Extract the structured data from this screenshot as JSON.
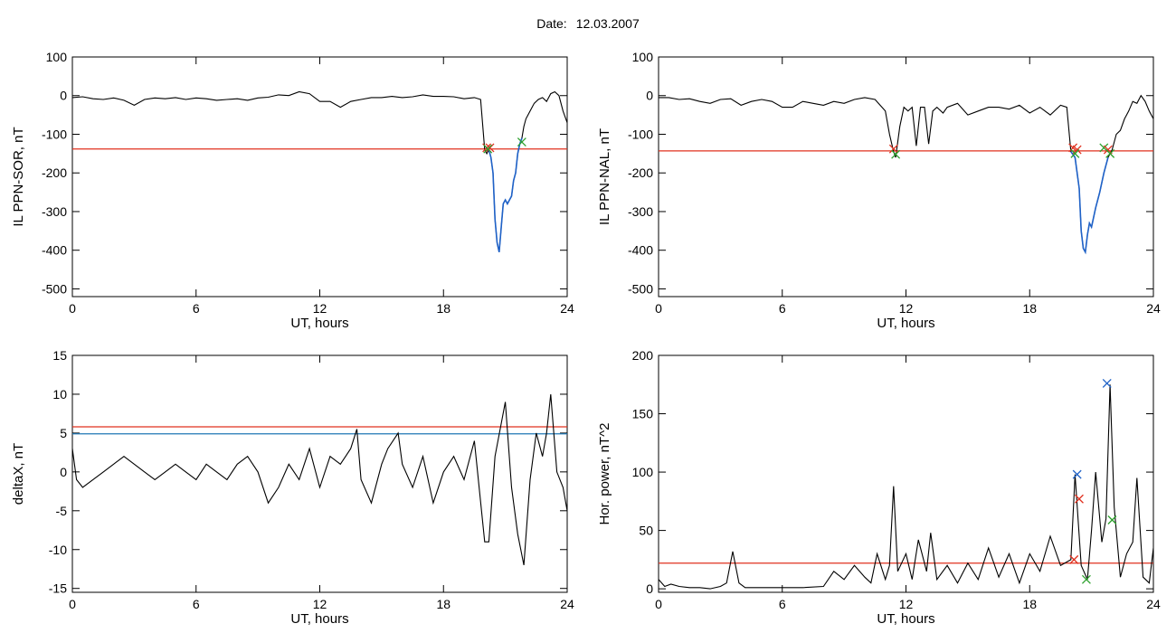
{
  "header": {
    "date_label": "Date:",
    "date_value": "12.03.2007"
  },
  "colors": {
    "trace": "#000000",
    "threshold_red": "#e0301e",
    "threshold_blue": "#1f77b4",
    "segment_blue": "#1f62c8",
    "marker_red": "#e0301e",
    "marker_green": "#2ca02c",
    "marker_blue": "#1f62c8"
  },
  "chart_data": [
    {
      "type": "line",
      "xlabel": "UT, hours",
      "ylabel": "IL PPN-SOR, nT",
      "xlim": [
        0,
        24
      ],
      "ylim": [
        -520,
        100
      ],
      "xticks": [
        0,
        6,
        12,
        18,
        24
      ],
      "yticks": [
        100,
        0,
        -100,
        -200,
        -300,
        -400,
        -500
      ],
      "grid": false,
      "series": [
        {
          "x": [
            0,
            0.5,
            1,
            1.5,
            2,
            2.5,
            3,
            3.5,
            4,
            4.5,
            5,
            5.5,
            6,
            6.5,
            7,
            7.5,
            8,
            8.5,
            9,
            9.5,
            10,
            10.5,
            11,
            11.5,
            12,
            12.5,
            13,
            13.5,
            14,
            14.5,
            15,
            15.5,
            16,
            16.5,
            17,
            17.5,
            18,
            18.5,
            19,
            19.5,
            19.8,
            20,
            20.1,
            20.2,
            20.3,
            20.4,
            20.5,
            20.6,
            20.7,
            20.8,
            20.9,
            21,
            21.1,
            21.2,
            21.3,
            21.4,
            21.5,
            21.6,
            21.7,
            21.8,
            21.9,
            22,
            22.2,
            22.4,
            22.6,
            22.8,
            23,
            23.2,
            23.4,
            23.6,
            23.8,
            24
          ],
          "y": [
            -5,
            -3,
            -8,
            -10,
            -6,
            -12,
            -25,
            -10,
            -6,
            -8,
            -5,
            -10,
            -6,
            -8,
            -12,
            -10,
            -8,
            -12,
            -6,
            -4,
            2,
            0,
            10,
            5,
            -15,
            -15,
            -30,
            -15,
            -10,
            -5,
            -5,
            -2,
            -5,
            -3,
            2,
            -2,
            -2,
            -3,
            -8,
            -5,
            -10,
            -140,
            -150,
            -140,
            -160,
            -200,
            -320,
            -380,
            -405,
            -340,
            -280,
            -270,
            -280,
            -270,
            -260,
            -220,
            -200,
            -150,
            -125,
            -110,
            -80,
            -60,
            -40,
            -20,
            -10,
            -5,
            -15,
            5,
            10,
            0,
            -40,
            -70
          ]
        }
      ],
      "threshold_red": -138,
      "blue_segment_range": [
        20.2,
        21.8
      ],
      "markers": [
        {
          "x": 20.1,
          "y": -135,
          "color": "red"
        },
        {
          "x": 20.25,
          "y": -135,
          "color": "red"
        },
        {
          "x": 20.15,
          "y": -138,
          "color": "green"
        },
        {
          "x": 21.8,
          "y": -120,
          "color": "green"
        }
      ]
    },
    {
      "type": "line",
      "xlabel": "UT, hours",
      "ylabel": "IL PPN-NAL, nT",
      "xlim": [
        0,
        24
      ],
      "ylim": [
        -520,
        100
      ],
      "xticks": [
        0,
        6,
        12,
        18,
        24
      ],
      "yticks": [
        100,
        0,
        -100,
        -200,
        -300,
        -400,
        -500
      ],
      "grid": false,
      "series": [
        {
          "x": [
            0,
            0.5,
            1,
            1.5,
            2,
            2.5,
            3,
            3.5,
            4,
            4.5,
            5,
            5.5,
            6,
            6.5,
            7,
            7.5,
            8,
            8.5,
            9,
            9.5,
            10,
            10.5,
            11,
            11.2,
            11.4,
            11.5,
            11.7,
            11.9,
            12.1,
            12.3,
            12.5,
            12.7,
            12.9,
            13.1,
            13.3,
            13.5,
            13.8,
            14,
            14.5,
            15,
            15.5,
            16,
            16.5,
            17,
            17.5,
            18,
            18.5,
            19,
            19.5,
            19.8,
            20,
            20.2,
            20.4,
            20.5,
            20.6,
            20.7,
            20.8,
            20.9,
            21,
            21.2,
            21.4,
            21.6,
            21.8,
            22,
            22.2,
            22.4,
            22.6,
            22.8,
            23,
            23.2,
            23.4,
            23.6,
            23.8,
            24
          ],
          "y": [
            -5,
            -5,
            -10,
            -8,
            -15,
            -20,
            -10,
            -8,
            -25,
            -15,
            -10,
            -15,
            -30,
            -30,
            -15,
            -20,
            -25,
            -15,
            -20,
            -10,
            -5,
            -10,
            -40,
            -100,
            -145,
            -160,
            -80,
            -30,
            -40,
            -30,
            -130,
            -30,
            -30,
            -125,
            -40,
            -30,
            -45,
            -30,
            -20,
            -50,
            -40,
            -30,
            -30,
            -35,
            -25,
            -45,
            -30,
            -50,
            -25,
            -30,
            -145,
            -160,
            -240,
            -350,
            -395,
            -405,
            -360,
            -330,
            -340,
            -290,
            -250,
            -200,
            -160,
            -140,
            -100,
            -90,
            -60,
            -40,
            -15,
            -20,
            0,
            -15,
            -40,
            -60
          ]
        }
      ],
      "threshold_red": -143,
      "blue_segment_range": [
        20,
        21.8
      ],
      "markers": [
        {
          "x": 11.4,
          "y": -138,
          "color": "red"
        },
        {
          "x": 11.5,
          "y": -152,
          "color": "green"
        },
        {
          "x": 20.1,
          "y": -135,
          "color": "red"
        },
        {
          "x": 20.3,
          "y": -140,
          "color": "red"
        },
        {
          "x": 20.2,
          "y": -150,
          "color": "green"
        },
        {
          "x": 21.6,
          "y": -135,
          "color": "green"
        },
        {
          "x": 21.8,
          "y": -140,
          "color": "red"
        },
        {
          "x": 21.9,
          "y": -150,
          "color": "green"
        }
      ]
    },
    {
      "type": "line",
      "xlabel": "UT, hours",
      "ylabel": "deltaX, nT",
      "xlim": [
        0,
        24
      ],
      "ylim": [
        -15.5,
        15
      ],
      "xticks": [
        0,
        6,
        12,
        18,
        24
      ],
      "yticks": [
        15,
        10,
        5,
        0,
        -5,
        -10,
        -15
      ],
      "grid": false,
      "series": [
        {
          "x": [
            0,
            0.2,
            0.5,
            1,
            1.5,
            2,
            2.5,
            3,
            3.5,
            4,
            4.5,
            5,
            5.5,
            6,
            6.5,
            7,
            7.5,
            8,
            8.5,
            9,
            9.5,
            10,
            10.5,
            11,
            11.5,
            12,
            12.5,
            13,
            13.5,
            13.8,
            14,
            14.5,
            15,
            15.3,
            15.8,
            16,
            16.5,
            17,
            17.5,
            18,
            18.5,
            19,
            19.5,
            20,
            20.2,
            20.5,
            21,
            21.3,
            21.6,
            21.9,
            22.2,
            22.5,
            22.8,
            23,
            23.2,
            23.5,
            23.8,
            24
          ],
          "y": [
            3,
            -1,
            -2,
            -1,
            0,
            1,
            2,
            1,
            0,
            -1,
            0,
            1,
            0,
            -1,
            1,
            0,
            -1,
            1,
            2,
            0,
            -4,
            -2,
            1,
            -1,
            3,
            -2,
            2,
            1,
            3,
            5.5,
            -1,
            -4,
            1,
            3,
            5,
            1,
            -2,
            2,
            -4,
            0,
            2,
            -1,
            4,
            -9,
            -9,
            2,
            9,
            -2,
            -8,
            -12,
            -1,
            5,
            2,
            5,
            10,
            0,
            -2,
            -5
          ]
        }
      ],
      "threshold_red": 5.8,
      "threshold_blue": 4.9
    },
    {
      "type": "line",
      "xlabel": "UT, hours",
      "ylabel": "Hor. power, nT^2",
      "xlim": [
        0,
        24
      ],
      "ylim": [
        -3,
        200
      ],
      "xticks": [
        0,
        6,
        12,
        18,
        24
      ],
      "yticks": [
        200,
        150,
        100,
        50,
        0
      ],
      "grid": false,
      "series": [
        {
          "x": [
            0,
            0.3,
            0.6,
            1,
            1.5,
            2,
            2.5,
            3,
            3.3,
            3.6,
            3.9,
            4.2,
            5,
            6,
            7,
            8,
            8.5,
            9,
            9.5,
            10,
            10.3,
            10.6,
            11,
            11.2,
            11.4,
            11.6,
            12,
            12.3,
            12.6,
            13,
            13.2,
            13.5,
            14,
            14.5,
            15,
            15.5,
            16,
            16.5,
            17,
            17.5,
            18,
            18.5,
            19,
            19.5,
            20,
            20.2,
            20.5,
            20.8,
            21,
            21.2,
            21.5,
            21.7,
            21.9,
            22.1,
            22.4,
            22.7,
            23,
            23.2,
            23.5,
            23.8,
            24
          ],
          "y": [
            8,
            2,
            4,
            2,
            1,
            1,
            0,
            2,
            5,
            32,
            5,
            1,
            1,
            1,
            1,
            2,
            15,
            8,
            20,
            10,
            5,
            30,
            8,
            20,
            88,
            15,
            30,
            8,
            42,
            15,
            48,
            8,
            20,
            5,
            22,
            8,
            35,
            10,
            30,
            5,
            30,
            15,
            45,
            20,
            25,
            98,
            20,
            8,
            50,
            100,
            40,
            60,
            175,
            70,
            10,
            30,
            40,
            95,
            10,
            5,
            35
          ]
        }
      ],
      "threshold_red": 22,
      "markers": [
        {
          "x": 20.3,
          "y": 98,
          "color": "blue"
        },
        {
          "x": 20.4,
          "y": 77,
          "color": "red"
        },
        {
          "x": 20.15,
          "y": 25,
          "color": "red"
        },
        {
          "x": 20.75,
          "y": 8,
          "color": "green"
        },
        {
          "x": 21.75,
          "y": 176,
          "color": "blue"
        },
        {
          "x": 22.0,
          "y": 59,
          "color": "green"
        }
      ]
    }
  ]
}
